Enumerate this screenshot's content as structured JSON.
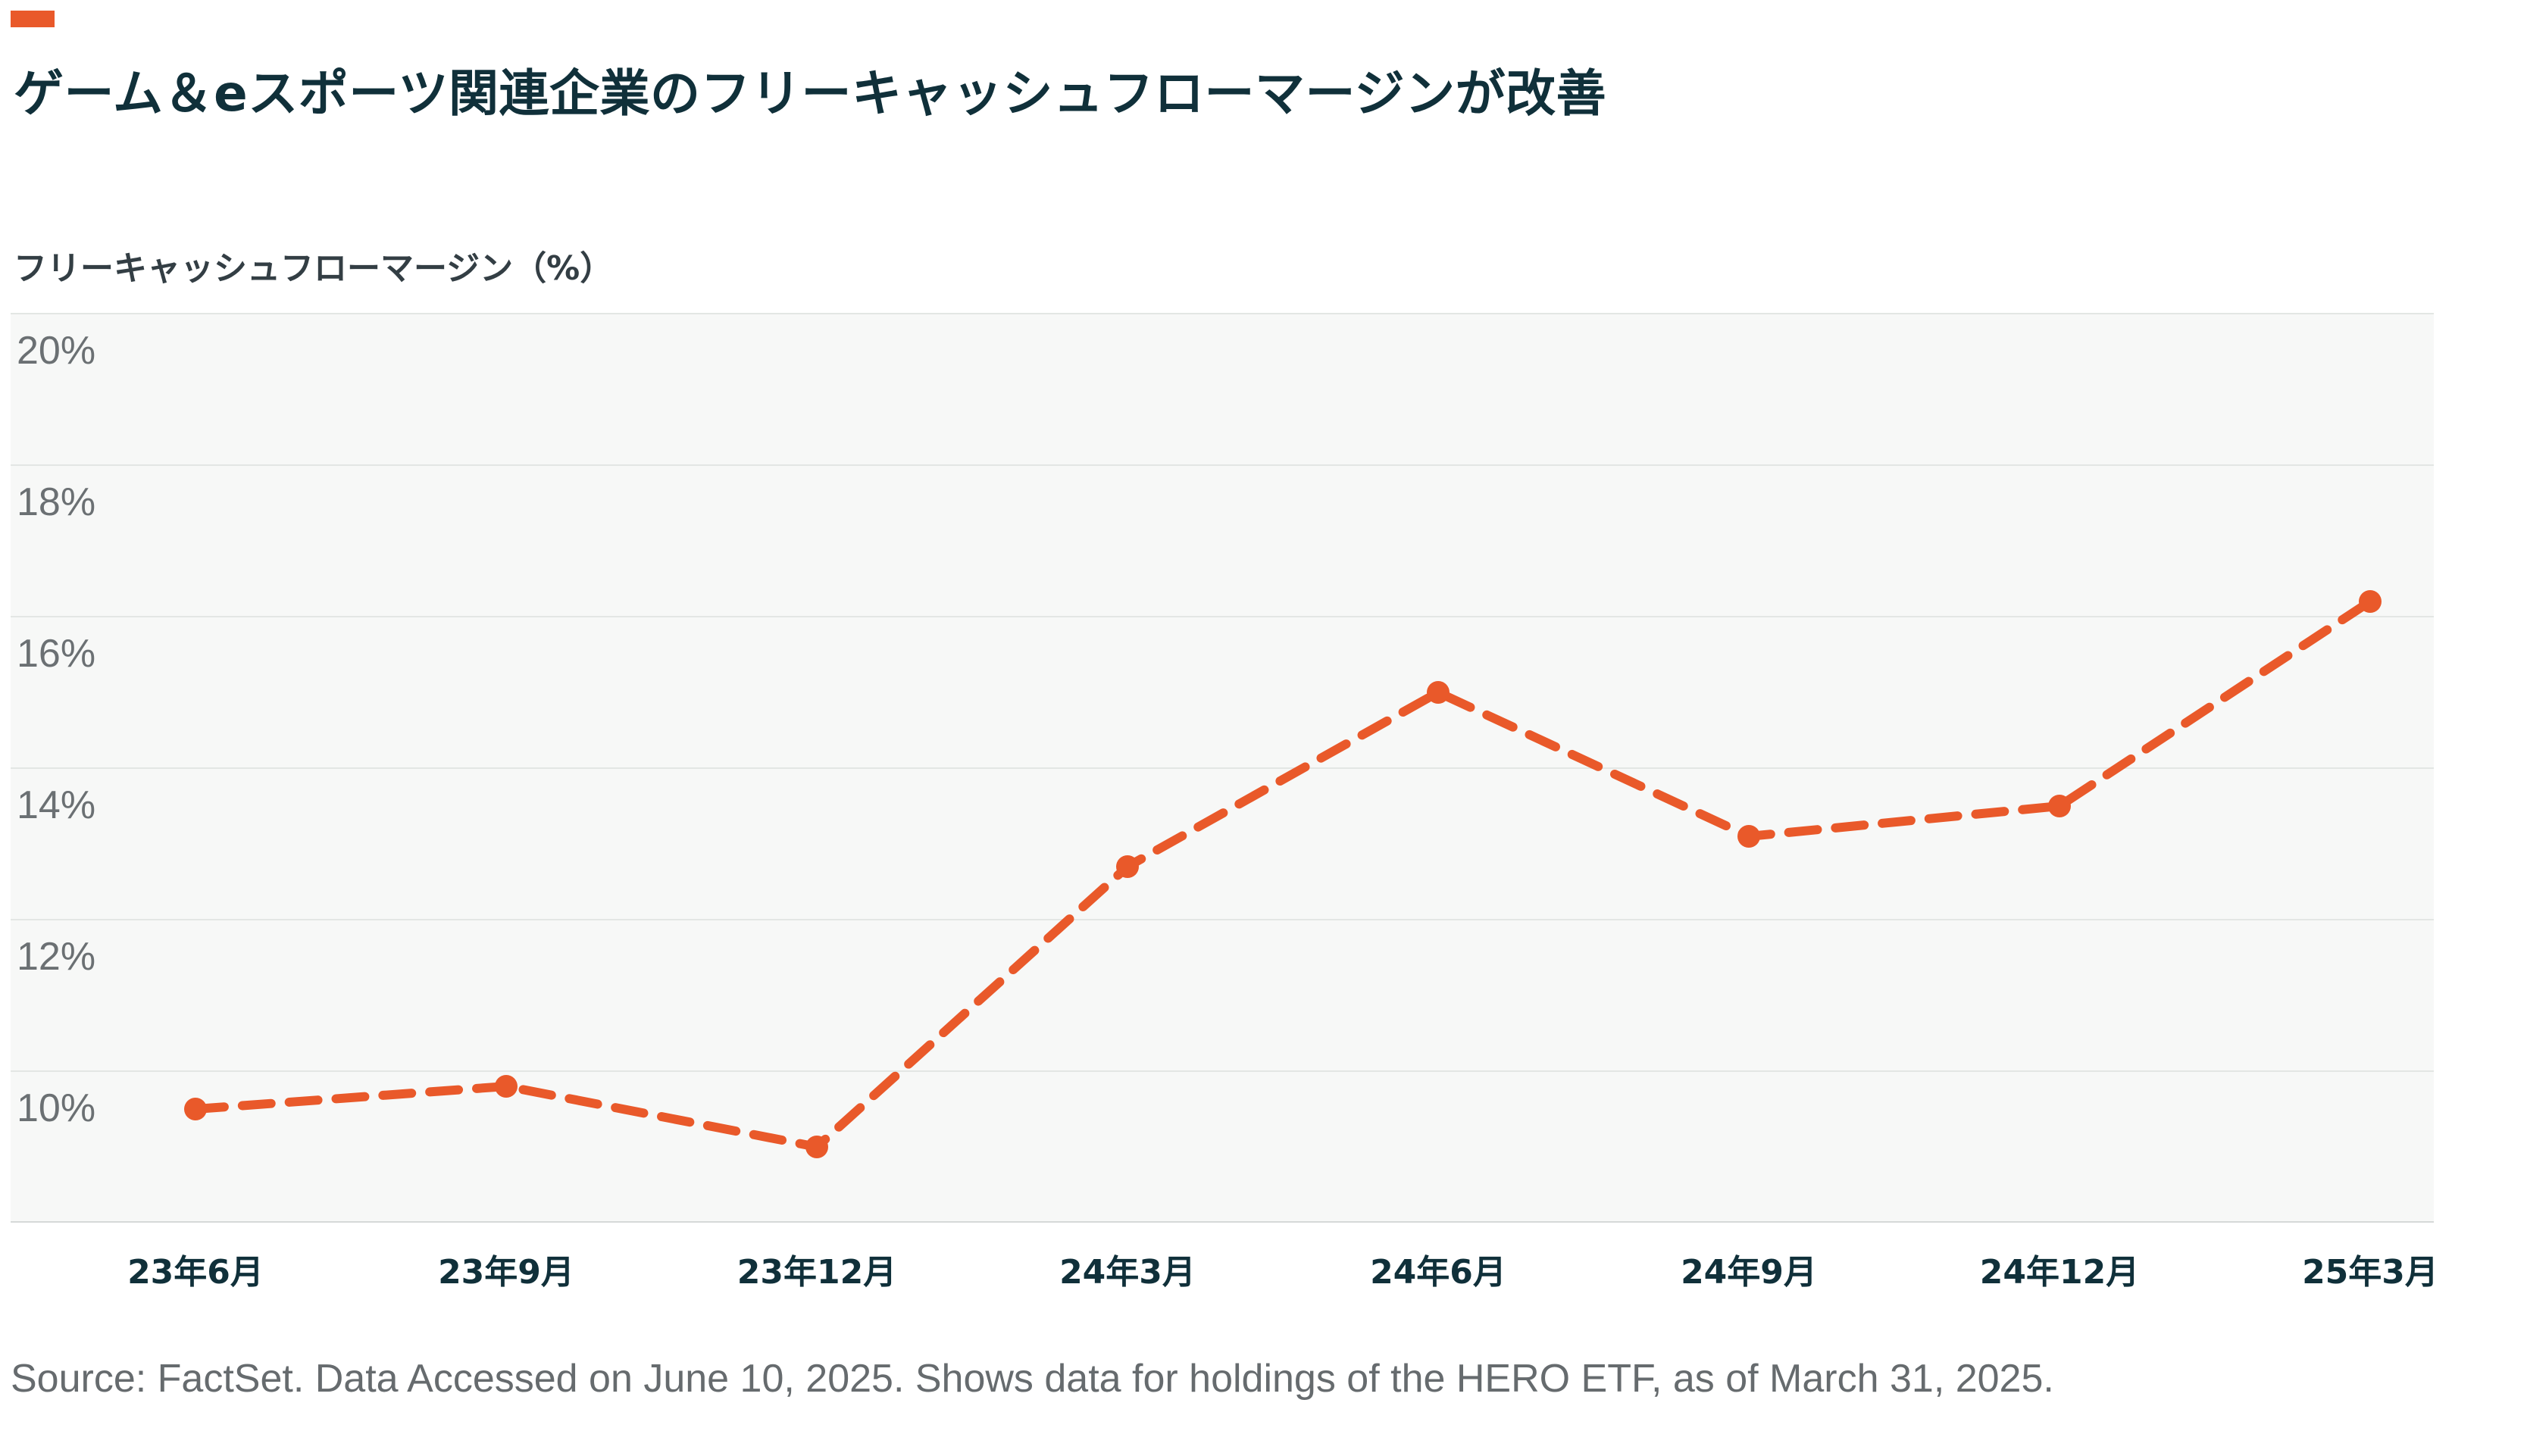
{
  "accent_color": "#e9592a",
  "chart_data": {
    "type": "line",
    "title": "ゲーム＆eスポーツ関連企業のフリーキャッシュフローマージンが改善",
    "ylabel": "フリーキャッシュフローマージン（%）",
    "xlabel": "",
    "categories": [
      "23年6月",
      "23年9月",
      "23年12月",
      "24年3月",
      "24年6月",
      "24年9月",
      "24年12月",
      "25年3月"
    ],
    "series": [
      {
        "values": [
          10.0,
          10.3,
          9.5,
          13.2,
          15.5,
          13.6,
          14.0,
          16.7
        ],
        "color": "#e9592a",
        "style": "dashed",
        "markers": true
      }
    ],
    "ylim": [
      8,
      20
    ],
    "yticks": [
      "20%",
      "18%",
      "16%",
      "14%",
      "12%",
      "10%"
    ],
    "ytick_values": [
      20,
      18,
      16,
      14,
      12,
      10
    ],
    "grid": true,
    "source": "Source: FactSet. Data Accessed on June 10, 2025. Shows data for holdings of the HERO ETF, as of March 31, 2025."
  }
}
